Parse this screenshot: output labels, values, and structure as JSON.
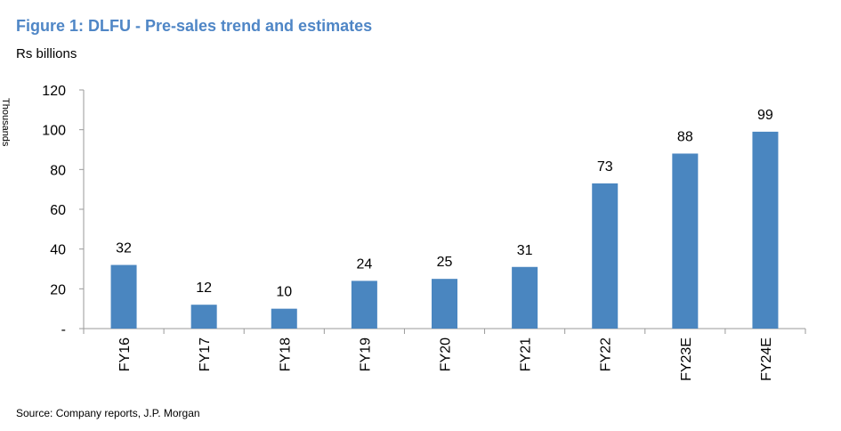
{
  "figure": {
    "title": "Figure 1: DLFU - Pre-sales trend and estimates",
    "unit_label": "Rs billions",
    "side_label": "Thousands",
    "source": "Source: Company reports, J.P. Morgan"
  },
  "colors": {
    "title": "#4f86c6",
    "bar": "#4a86c0",
    "axis": "#9a9a9a"
  },
  "chart_data": {
    "type": "bar",
    "categories": [
      "FY16",
      "FY17",
      "FY18",
      "FY19",
      "FY20",
      "FY21",
      "FY22",
      "FY23E",
      "FY24E"
    ],
    "values": [
      32,
      12,
      10,
      24,
      25,
      31,
      73,
      88,
      99
    ],
    "data_labels": [
      "32",
      "12",
      "10",
      "24",
      "25",
      "31",
      "73",
      "88",
      "99"
    ],
    "title": "",
    "xlabel": "",
    "ylabel": "",
    "ylim": [
      0,
      120
    ],
    "yticks": [
      0,
      20,
      40,
      60,
      80,
      100,
      120
    ],
    "ytick_labels": [
      "-",
      "20",
      "40",
      "60",
      "80",
      "100",
      "120"
    ],
    "grid": false,
    "legend": "none"
  }
}
